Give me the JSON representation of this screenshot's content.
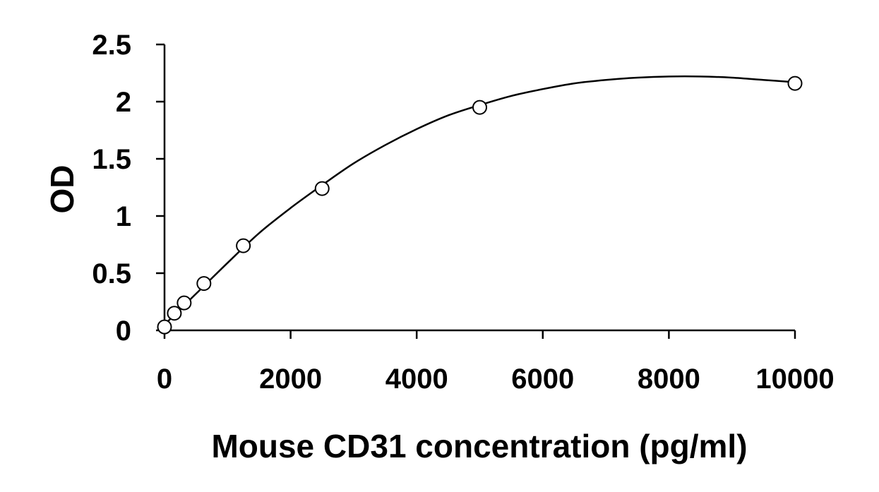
{
  "chart_data": {
    "type": "scatter",
    "title": "",
    "xlabel": "Mouse CD31 concentration (pg/ml)",
    "ylabel": "OD",
    "xlim": [
      0,
      10000
    ],
    "ylim": [
      0,
      2.5
    ],
    "x_ticks": [
      0,
      2000,
      4000,
      6000,
      8000,
      10000
    ],
    "x_tick_labels": [
      "0",
      "2000",
      "4000",
      "6000",
      "8000",
      "10000"
    ],
    "y_ticks": [
      0,
      0.5,
      1,
      1.5,
      2,
      2.5
    ],
    "y_tick_labels": [
      "0",
      "0.5",
      "1",
      "1.5",
      "2",
      "2.5"
    ],
    "grid": false,
    "legend": "none",
    "series": [
      {
        "marker": "open-circle",
        "x": [
          0,
          156,
          312,
          625,
          1250,
          2500,
          5000,
          10000
        ],
        "y": [
          0.03,
          0.15,
          0.24,
          0.41,
          0.74,
          1.24,
          1.95,
          2.16
        ]
      }
    ],
    "trendline": {
      "type": "polynomial",
      "x": [
        0,
        500,
        1000,
        1500,
        2000,
        2500,
        3000,
        3500,
        4000,
        4500,
        5000,
        5500,
        6000,
        6500,
        7000,
        7500,
        8000,
        8500,
        9000,
        9500,
        10000
      ],
      "y": [
        0.05,
        0.32,
        0.59,
        0.85,
        1.07,
        1.27,
        1.46,
        1.62,
        1.76,
        1.88,
        1.97,
        2.05,
        2.11,
        2.16,
        2.19,
        2.21,
        2.22,
        2.22,
        2.21,
        2.19,
        2.17
      ]
    }
  }
}
